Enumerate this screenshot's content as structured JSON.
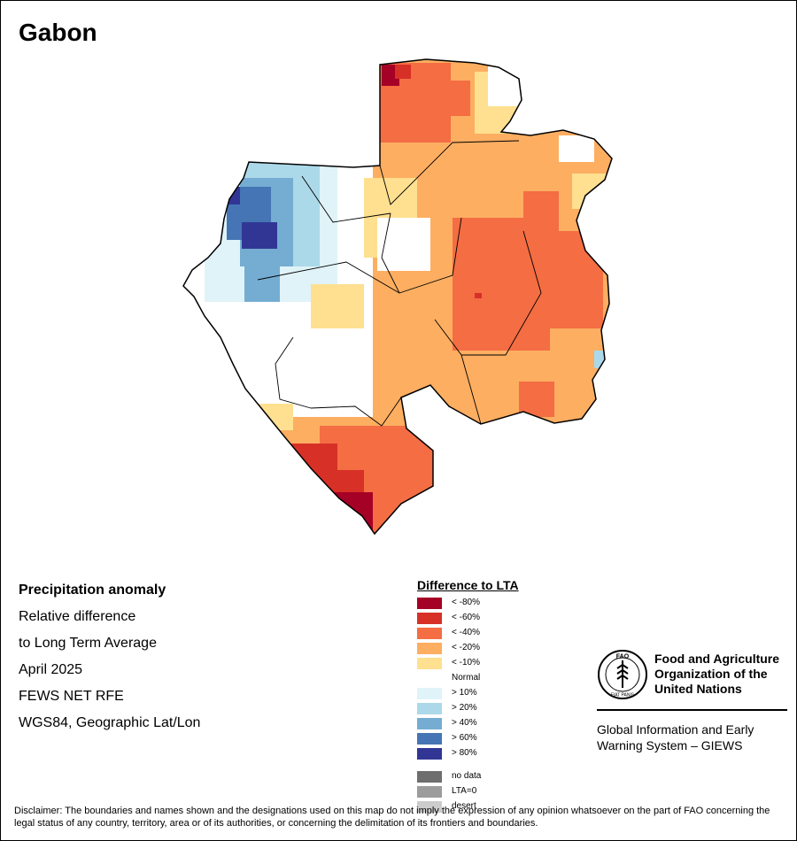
{
  "title": "Gabon",
  "info": {
    "heading": "Precipitation anomaly",
    "line1": "Relative difference",
    "line2": "to Long Term Average",
    "date": "April 2025",
    "source": "FEWS NET RFE",
    "projection": "WGS84, Geographic Lat/Lon"
  },
  "legend": {
    "title": "Difference to LTA",
    "classes": [
      {
        "label": "< -80%",
        "color": "#a50026"
      },
      {
        "label": "< -60%",
        "color": "#d73027"
      },
      {
        "label": "< -40%",
        "color": "#f46d43"
      },
      {
        "label": "< -20%",
        "color": "#fdae61"
      },
      {
        "label": "< -10%",
        "color": "#fee090"
      },
      {
        "label": "Normal",
        "color": "#ffffff"
      },
      {
        "label": "> 10%",
        "color": "#e0f3f8"
      },
      {
        "label": "> 20%",
        "color": "#abd9e9"
      },
      {
        "label": "> 40%",
        "color": "#74add1"
      },
      {
        "label": "> 60%",
        "color": "#4575b4"
      },
      {
        "label": "> 80%",
        "color": "#313695"
      }
    ],
    "special": [
      {
        "label": "no data",
        "color": "#6e6e6e"
      },
      {
        "label": "LTA=0",
        "color": "#9c9c9c"
      },
      {
        "label": "desert",
        "color": "#cccccc"
      }
    ]
  },
  "fao": {
    "name_line1": "Food and Agriculture",
    "name_line2": "Organization of the",
    "name_line3": "United Nations",
    "logo_text": "FAO",
    "logo_motto": "FIAT PANIS",
    "giews_line1": "Global Information and Early",
    "giews_line2": "Warning System – GIEWS"
  },
  "disclaimer": "Disclaimer: The boundaries and names shown and the designations used on this map do not imply the expression of any opinion whatsoever on the part of FAO concerning the legal status of any country, territory, area or of its authorities, or concerning the delimitation of its frontiers and boundaries."
}
